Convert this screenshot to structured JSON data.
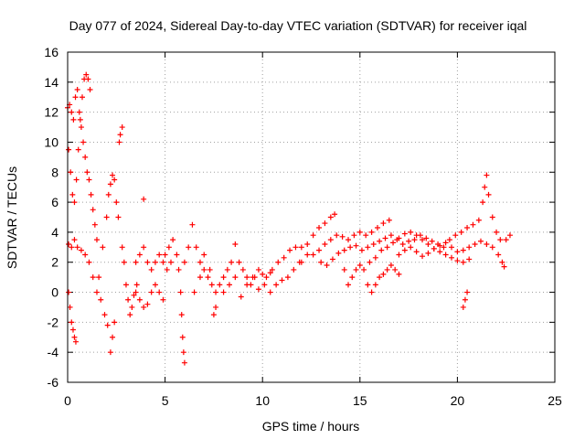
{
  "chart_data": {
    "type": "scatter",
    "title": "Day 077 of 2024, Sidereal Day-to-day VTEC variation (SDTVAR) for receiver iqal",
    "xlabel": "GPS time / hours",
    "ylabel": "SDTVAR / TECUs",
    "xlim": [
      0,
      25
    ],
    "ylim": [
      -6,
      16
    ],
    "xticks": [
      0,
      5,
      10,
      15,
      20,
      25
    ],
    "yticks": [
      -6,
      -4,
      -2,
      0,
      2,
      4,
      6,
      8,
      10,
      12,
      14,
      16
    ],
    "xtick_labels": [
      "0",
      "5",
      "10",
      "15",
      "20",
      "25"
    ],
    "ytick_labels": [
      "-6",
      "-4",
      "-2",
      "0",
      "2",
      "4",
      "6",
      "8",
      "10",
      "12",
      "14",
      "16"
    ],
    "grid": true,
    "marker": "+",
    "marker_color": "#ff0000",
    "series": [
      {
        "name": "SDTVAR",
        "points": [
          [
            0.0,
            12.3
          ],
          [
            0.1,
            12.5
          ],
          [
            0.2,
            12.0
          ],
          [
            0.3,
            11.5
          ],
          [
            0.4,
            13.0
          ],
          [
            0.5,
            13.5
          ],
          [
            0.6,
            12.0
          ],
          [
            0.7,
            11.0
          ],
          [
            0.8,
            10.0
          ],
          [
            0.9,
            9.0
          ],
          [
            1.0,
            8.0
          ],
          [
            1.1,
            7.5
          ],
          [
            1.2,
            6.5
          ],
          [
            1.3,
            5.5
          ],
          [
            1.4,
            4.5
          ],
          [
            1.5,
            3.5
          ],
          [
            0.05,
            9.5
          ],
          [
            0.15,
            8.0
          ],
          [
            0.25,
            6.5
          ],
          [
            0.35,
            6.0
          ],
          [
            0.45,
            7.5
          ],
          [
            0.55,
            9.5
          ],
          [
            0.65,
            11.5
          ],
          [
            0.75,
            13.0
          ],
          [
            0.85,
            14.2
          ],
          [
            0.95,
            14.5
          ],
          [
            1.05,
            14.2
          ],
          [
            1.15,
            13.5
          ],
          [
            0.05,
            3.2
          ],
          [
            0.2,
            3.0
          ],
          [
            0.35,
            3.5
          ],
          [
            0.5,
            3.0
          ],
          [
            0.7,
            2.8
          ],
          [
            0.9,
            2.5
          ],
          [
            1.1,
            2.0
          ],
          [
            1.3,
            1.0
          ],
          [
            1.5,
            0.0
          ],
          [
            1.7,
            -0.5
          ],
          [
            1.9,
            -1.5
          ],
          [
            2.05,
            -2.2
          ],
          [
            0.05,
            0.0
          ],
          [
            0.12,
            -1.0
          ],
          [
            0.2,
            -2.0
          ],
          [
            0.28,
            -2.5
          ],
          [
            0.35,
            -3.0
          ],
          [
            0.42,
            -3.3
          ],
          [
            1.6,
            1.0
          ],
          [
            1.8,
            3.0
          ],
          [
            2.0,
            5.0
          ],
          [
            2.1,
            6.5
          ],
          [
            2.2,
            7.2
          ],
          [
            2.3,
            7.8
          ],
          [
            2.4,
            7.5
          ],
          [
            2.5,
            6.0
          ],
          [
            2.6,
            5.0
          ],
          [
            2.65,
            10.0
          ],
          [
            2.7,
            10.5
          ],
          [
            2.8,
            11.0
          ],
          [
            2.8,
            3.0
          ],
          [
            2.9,
            2.0
          ],
          [
            3.0,
            0.5
          ],
          [
            3.1,
            -0.5
          ],
          [
            3.2,
            -1.5
          ],
          [
            3.3,
            -1.0
          ],
          [
            3.4,
            -0.2
          ],
          [
            3.55,
            0.5
          ],
          [
            2.2,
            -4.0
          ],
          [
            2.3,
            -3.0
          ],
          [
            2.4,
            -2.0
          ],
          [
            3.5,
            2.0
          ],
          [
            3.7,
            2.5
          ],
          [
            3.9,
            3.0
          ],
          [
            4.1,
            2.0
          ],
          [
            4.3,
            1.5
          ],
          [
            4.5,
            2.0
          ],
          [
            4.7,
            2.5
          ],
          [
            4.9,
            2.0
          ],
          [
            5.1,
            1.5
          ],
          [
            5.3,
            2.0
          ],
          [
            3.9,
            6.2
          ],
          [
            3.5,
            0.0
          ],
          [
            3.7,
            -0.5
          ],
          [
            3.9,
            -1.0
          ],
          [
            4.1,
            -0.8
          ],
          [
            4.3,
            0.0
          ],
          [
            4.5,
            0.5
          ],
          [
            4.7,
            0.0
          ],
          [
            4.9,
            -0.5
          ],
          [
            5.0,
            2.5
          ],
          [
            5.2,
            3.0
          ],
          [
            5.4,
            3.5
          ],
          [
            5.6,
            2.5
          ],
          [
            5.7,
            1.5
          ],
          [
            5.8,
            0.0
          ],
          [
            5.85,
            -1.5
          ],
          [
            5.9,
            -3.0
          ],
          [
            5.95,
            -4.0
          ],
          [
            6.0,
            -4.7
          ],
          [
            6.0,
            2.0
          ],
          [
            6.2,
            3.0
          ],
          [
            6.4,
            4.5
          ],
          [
            6.6,
            3.0
          ],
          [
            6.8,
            2.0
          ],
          [
            7.0,
            1.5
          ],
          [
            7.2,
            1.0
          ],
          [
            7.4,
            0.5
          ],
          [
            7.6,
            0.0
          ],
          [
            6.5,
            0.0
          ],
          [
            6.8,
            1.0
          ],
          [
            7.0,
            2.5
          ],
          [
            7.3,
            1.5
          ],
          [
            7.5,
            -1.5
          ],
          [
            7.6,
            -1.0
          ],
          [
            7.8,
            0.5
          ],
          [
            8.0,
            1.0
          ],
          [
            8.2,
            1.5
          ],
          [
            8.4,
            2.0
          ],
          [
            8.6,
            3.2
          ],
          [
            8.8,
            2.0
          ],
          [
            9.0,
            1.5
          ],
          [
            9.2,
            1.0
          ],
          [
            9.4,
            0.5
          ],
          [
            9.6,
            1.0
          ],
          [
            9.8,
            1.5
          ],
          [
            10.0,
            1.2
          ],
          [
            10.2,
            1.0
          ],
          [
            10.4,
            1.3
          ],
          [
            8.0,
            0.0
          ],
          [
            8.3,
            0.5
          ],
          [
            8.6,
            1.0
          ],
          [
            8.9,
            -0.3
          ],
          [
            9.2,
            0.5
          ],
          [
            9.5,
            1.0
          ],
          [
            9.8,
            0.2
          ],
          [
            10.1,
            0.5
          ],
          [
            10.4,
            0.0
          ],
          [
            10.7,
            0.5
          ],
          [
            11.0,
            0.8
          ],
          [
            11.3,
            1.0
          ],
          [
            11.6,
            1.5
          ],
          [
            11.9,
            2.0
          ],
          [
            10.5,
            1.5
          ],
          [
            10.8,
            2.0
          ],
          [
            11.1,
            2.3
          ],
          [
            11.4,
            2.8
          ],
          [
            11.7,
            3.0
          ],
          [
            12.0,
            3.0
          ],
          [
            12.3,
            3.2
          ],
          [
            12.6,
            3.8
          ],
          [
            12.9,
            4.3
          ],
          [
            13.2,
            4.6
          ],
          [
            13.5,
            5.0
          ],
          [
            13.7,
            5.2
          ],
          [
            12.0,
            2.0
          ],
          [
            12.3,
            2.5
          ],
          [
            12.6,
            2.5
          ],
          [
            12.9,
            2.8
          ],
          [
            13.2,
            3.2
          ],
          [
            13.5,
            3.5
          ],
          [
            13.8,
            3.8
          ],
          [
            14.1,
            3.7
          ],
          [
            14.4,
            3.5
          ],
          [
            14.7,
            3.8
          ],
          [
            15.0,
            4.0
          ],
          [
            15.3,
            3.8
          ],
          [
            15.6,
            4.0
          ],
          [
            15.9,
            4.3
          ],
          [
            16.2,
            4.6
          ],
          [
            16.5,
            4.8
          ],
          [
            13.0,
            2.0
          ],
          [
            13.3,
            1.8
          ],
          [
            13.6,
            2.2
          ],
          [
            13.9,
            2.6
          ],
          [
            14.2,
            2.8
          ],
          [
            14.5,
            3.0
          ],
          [
            14.8,
            3.1
          ],
          [
            15.1,
            2.8
          ],
          [
            15.4,
            3.0
          ],
          [
            15.7,
            3.2
          ],
          [
            16.0,
            3.4
          ],
          [
            16.3,
            3.6
          ],
          [
            16.6,
            3.8
          ],
          [
            16.9,
            3.5
          ],
          [
            17.2,
            3.2
          ],
          [
            17.5,
            3.4
          ],
          [
            17.8,
            3.5
          ],
          [
            18.1,
            3.8
          ],
          [
            18.4,
            3.6
          ],
          [
            18.7,
            3.4
          ],
          [
            19.0,
            3.2
          ],
          [
            19.3,
            3.0
          ],
          [
            19.6,
            3.5
          ],
          [
            19.9,
            3.8
          ],
          [
            20.2,
            4.0
          ],
          [
            20.5,
            4.3
          ],
          [
            20.8,
            4.5
          ],
          [
            21.1,
            4.8
          ],
          [
            21.3,
            6.0
          ],
          [
            21.4,
            7.0
          ],
          [
            21.5,
            7.8
          ],
          [
            21.6,
            6.5
          ],
          [
            21.8,
            5.0
          ],
          [
            22.0,
            4.0
          ],
          [
            22.2,
            3.5
          ],
          [
            22.5,
            3.5
          ],
          [
            22.7,
            3.8
          ],
          [
            14.2,
            1.5
          ],
          [
            14.4,
            0.5
          ],
          [
            14.6,
            1.0
          ],
          [
            14.8,
            1.5
          ],
          [
            15.0,
            1.8
          ],
          [
            15.2,
            1.5
          ],
          [
            15.4,
            0.5
          ],
          [
            15.6,
            0.0
          ],
          [
            15.8,
            0.5
          ],
          [
            16.0,
            1.0
          ],
          [
            16.2,
            1.2
          ],
          [
            16.4,
            1.5
          ],
          [
            16.6,
            1.8
          ],
          [
            16.8,
            1.5
          ],
          [
            17.0,
            1.2
          ],
          [
            15.5,
            2.0
          ],
          [
            15.8,
            2.3
          ],
          [
            16.1,
            2.8
          ],
          [
            16.4,
            3.0
          ],
          [
            16.7,
            3.3
          ],
          [
            17.0,
            3.6
          ],
          [
            17.3,
            3.9
          ],
          [
            17.6,
            4.0
          ],
          [
            17.9,
            3.8
          ],
          [
            18.2,
            3.5
          ],
          [
            18.5,
            3.2
          ],
          [
            18.8,
            2.9
          ],
          [
            19.1,
            2.7
          ],
          [
            19.4,
            2.5
          ],
          [
            19.7,
            2.3
          ],
          [
            20.0,
            2.1
          ],
          [
            20.3,
            2.0
          ],
          [
            20.6,
            2.2
          ],
          [
            17.0,
            2.5
          ],
          [
            17.3,
            2.8
          ],
          [
            17.6,
            3.0
          ],
          [
            17.9,
            2.7
          ],
          [
            18.2,
            2.4
          ],
          [
            18.5,
            2.6
          ],
          [
            18.8,
            2.9
          ],
          [
            19.1,
            3.1
          ],
          [
            19.4,
            3.3
          ],
          [
            19.7,
            3.0
          ],
          [
            20.0,
            2.7
          ],
          [
            20.3,
            2.8
          ],
          [
            20.6,
            3.0
          ],
          [
            20.9,
            3.2
          ],
          [
            21.2,
            3.4
          ],
          [
            21.5,
            3.2
          ],
          [
            21.8,
            3.0
          ],
          [
            22.1,
            2.5
          ],
          [
            22.3,
            2.0
          ],
          [
            22.4,
            1.7
          ],
          [
            20.3,
            -1.0
          ],
          [
            20.4,
            -0.5
          ],
          [
            20.5,
            0.0
          ]
        ]
      }
    ]
  }
}
